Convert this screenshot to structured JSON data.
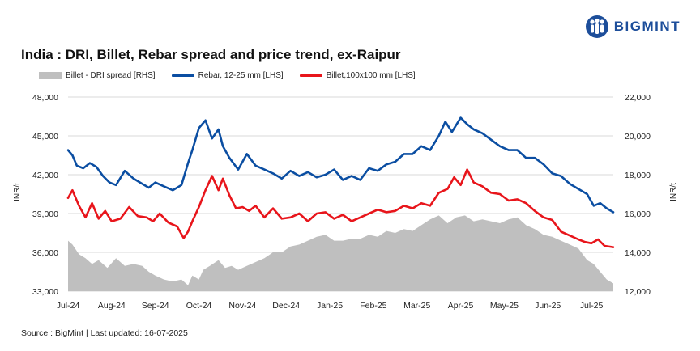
{
  "logo": {
    "text": "BIGMINT",
    "icon": "bigmint-people-icon"
  },
  "colors": {
    "brand": "#1d4e9a",
    "rebar": "#0b4ea2",
    "billet": "#e8151b",
    "spread": "#bfbfbf"
  },
  "source": "Source : BigMint | Last updated: 16-07-2025",
  "chart_data": {
    "type": "line",
    "title": "India : DRI, Billet, Rebar spread and price trend, ex-Raipur",
    "ylabel_left": "INR/t",
    "ylabel_right": "INR/t",
    "ylim_left": [
      33000,
      48000
    ],
    "yticks_left": [
      33000,
      36000,
      39000,
      42000,
      45000,
      48000
    ],
    "ytick_labels_left": [
      "33,000",
      "36,000",
      "39,000",
      "42,000",
      "45,000",
      "48,000"
    ],
    "ylim_right": [
      12000,
      22000
    ],
    "yticks_right": [
      12000,
      14000,
      16000,
      18000,
      20000,
      22000
    ],
    "ytick_labels_right": [
      "12,000",
      "14,000",
      "16,000",
      "18,000",
      "20,000",
      "22,000"
    ],
    "xlim": [
      0,
      12.5
    ],
    "x_tick_labels": [
      "Jul-24",
      "Aug-24",
      "Sep-24",
      "Oct-24",
      "Nov-24",
      "Dec-24",
      "Jan-25",
      "Feb-25",
      "Mar-25",
      "Apr-25",
      "May-25",
      "Jun-25",
      "Jul-25"
    ],
    "grid": true,
    "series": [
      {
        "name": "Billet - DRI spread  [RHS]",
        "axis": "right",
        "kind": "area",
        "x": [
          0,
          0.1,
          0.25,
          0.4,
          0.55,
          0.7,
          0.9,
          1.1,
          1.3,
          1.5,
          1.7,
          1.85,
          2.0,
          2.2,
          2.4,
          2.6,
          2.75,
          2.85,
          3.0,
          3.1,
          3.25,
          3.45,
          3.6,
          3.75,
          3.9,
          4.1,
          4.3,
          4.5,
          4.7,
          4.9,
          5.1,
          5.3,
          5.5,
          5.7,
          5.9,
          6.1,
          6.3,
          6.5,
          6.7,
          6.9,
          7.1,
          7.3,
          7.5,
          7.7,
          7.9,
          8.1,
          8.3,
          8.5,
          8.7,
          8.9,
          9.1,
          9.3,
          9.5,
          9.7,
          9.9,
          10.1,
          10.3,
          10.5,
          10.7,
          10.9,
          11.1,
          11.3,
          11.5,
          11.7,
          11.9,
          12.05,
          12.2,
          12.35,
          12.5
        ],
        "values": [
          14.6,
          14.4,
          13.9,
          13.7,
          13.4,
          13.6,
          13.2,
          13.7,
          13.3,
          13.4,
          13.3,
          13.0,
          12.8,
          12.6,
          12.5,
          12.6,
          12.3,
          12.8,
          12.6,
          13.1,
          13.3,
          13.6,
          13.2,
          13.3,
          13.1,
          13.3,
          13.5,
          13.7,
          14.0,
          14.0,
          14.3,
          14.4,
          14.6,
          14.8,
          14.9,
          14.6,
          14.6,
          14.7,
          14.7,
          14.9,
          14.8,
          15.1,
          15.0,
          15.2,
          15.1,
          15.4,
          15.7,
          15.9,
          15.5,
          15.8,
          15.9,
          15.6,
          15.7,
          15.6,
          15.5,
          15.7,
          15.8,
          15.4,
          15.2,
          14.9,
          14.8,
          14.6,
          14.4,
          14.2,
          13.6,
          13.4,
          13.0,
          12.6,
          12.4
        ]
      },
      {
        "name": "Rebar, 12-25 mm [LHS]",
        "axis": "left",
        "kind": "line",
        "x": [
          0,
          0.1,
          0.2,
          0.35,
          0.5,
          0.65,
          0.8,
          0.95,
          1.1,
          1.3,
          1.5,
          1.7,
          1.85,
          2.0,
          2.2,
          2.4,
          2.6,
          2.75,
          2.85,
          3.0,
          3.15,
          3.3,
          3.45,
          3.55,
          3.7,
          3.9,
          4.1,
          4.3,
          4.5,
          4.7,
          4.9,
          5.1,
          5.3,
          5.5,
          5.7,
          5.9,
          6.1,
          6.3,
          6.5,
          6.7,
          6.9,
          7.1,
          7.3,
          7.5,
          7.7,
          7.9,
          8.1,
          8.3,
          8.5,
          8.65,
          8.8,
          9.0,
          9.15,
          9.3,
          9.5,
          9.7,
          9.9,
          10.1,
          10.3,
          10.5,
          10.7,
          10.9,
          11.1,
          11.3,
          11.5,
          11.7,
          11.9,
          12.05,
          12.2,
          12.35,
          12.5
        ],
        "values": [
          43.9,
          43.5,
          42.7,
          42.5,
          42.9,
          42.6,
          41.9,
          41.4,
          41.2,
          42.3,
          41.7,
          41.3,
          41.0,
          41.4,
          41.1,
          40.8,
          41.2,
          42.9,
          43.9,
          45.6,
          46.2,
          44.8,
          45.5,
          44.2,
          43.3,
          42.4,
          43.6,
          42.7,
          42.4,
          42.1,
          41.7,
          42.3,
          41.9,
          42.2,
          41.8,
          42.0,
          42.4,
          41.6,
          41.9,
          41.6,
          42.5,
          42.3,
          42.8,
          43.0,
          43.6,
          43.6,
          44.2,
          43.9,
          45.0,
          46.1,
          45.3,
          46.4,
          45.9,
          45.5,
          45.2,
          44.7,
          44.2,
          43.9,
          43.9,
          43.3,
          43.3,
          42.8,
          42.1,
          41.9,
          41.3,
          40.9,
          40.5,
          39.6,
          39.8,
          39.4,
          39.1
        ]
      },
      {
        "name": "Billet,100x100 mm [LHS]",
        "axis": "left",
        "kind": "line",
        "x": [
          0,
          0.1,
          0.25,
          0.4,
          0.55,
          0.7,
          0.85,
          1.0,
          1.2,
          1.4,
          1.6,
          1.8,
          1.95,
          2.1,
          2.3,
          2.5,
          2.65,
          2.75,
          2.85,
          3.0,
          3.15,
          3.3,
          3.45,
          3.55,
          3.7,
          3.85,
          4.0,
          4.15,
          4.3,
          4.5,
          4.7,
          4.9,
          5.1,
          5.3,
          5.5,
          5.7,
          5.9,
          6.1,
          6.3,
          6.5,
          6.7,
          6.9,
          7.1,
          7.3,
          7.5,
          7.7,
          7.9,
          8.1,
          8.3,
          8.5,
          8.7,
          8.85,
          9.0,
          9.15,
          9.3,
          9.5,
          9.7,
          9.9,
          10.1,
          10.3,
          10.5,
          10.7,
          10.9,
          11.1,
          11.3,
          11.5,
          11.7,
          11.85,
          12.0,
          12.15,
          12.3,
          12.5
        ],
        "values": [
          40.2,
          40.8,
          39.6,
          38.7,
          39.8,
          38.6,
          39.2,
          38.4,
          38.6,
          39.5,
          38.8,
          38.7,
          38.4,
          39.0,
          38.3,
          38.0,
          37.1,
          37.6,
          38.4,
          39.5,
          40.8,
          41.9,
          40.8,
          41.7,
          40.4,
          39.4,
          39.5,
          39.2,
          39.6,
          38.7,
          39.4,
          38.6,
          38.7,
          39.0,
          38.4,
          39.0,
          39.1,
          38.6,
          38.9,
          38.4,
          38.7,
          39.0,
          39.3,
          39.1,
          39.2,
          39.6,
          39.4,
          39.8,
          39.6,
          40.6,
          40.9,
          41.8,
          41.2,
          42.4,
          41.4,
          41.1,
          40.6,
          40.5,
          40.0,
          40.1,
          39.8,
          39.2,
          38.7,
          38.5,
          37.6,
          37.3,
          37.0,
          36.8,
          36.7,
          37.0,
          36.5,
          36.4
        ]
      }
    ]
  }
}
